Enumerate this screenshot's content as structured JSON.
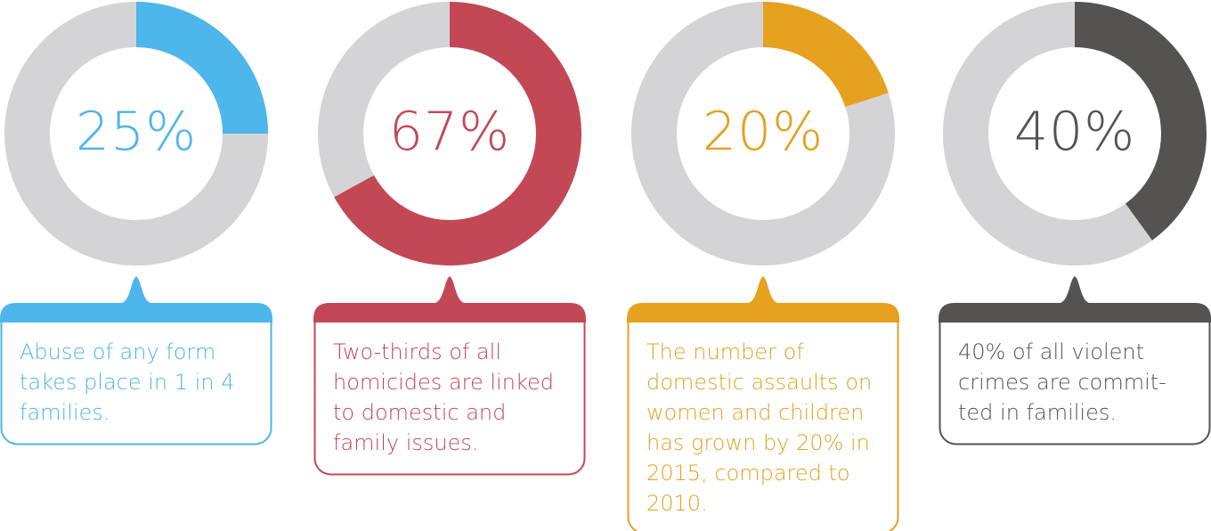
{
  "colors": {
    "track": "#d4d4d6",
    "inner": "#ffffff"
  },
  "chart_data": [
    {
      "type": "pie",
      "value": 25,
      "label": "25%",
      "color": "#4db6ea",
      "caption": [
        "Abuse of any form",
        "takes place in 1 in 4",
        "families."
      ]
    },
    {
      "type": "pie",
      "value": 67,
      "label": "67%",
      "color": "#c34856",
      "caption": [
        "Two-thirds of all",
        "homicides are linked",
        "to domestic and",
        "family issues."
      ]
    },
    {
      "type": "pie",
      "value": 20,
      "label": "20%",
      "color": "#e6a11f",
      "caption": [
        "The number of",
        "domestic assaults on",
        "women and children",
        "has grown by 20% in",
        "2015, compared to",
        "2010."
      ]
    },
    {
      "type": "pie",
      "value": 40,
      "label": "40%",
      "color": "#545351",
      "caption": [
        "40% of all violent",
        "crimes are commit-",
        "ted in families."
      ]
    }
  ]
}
